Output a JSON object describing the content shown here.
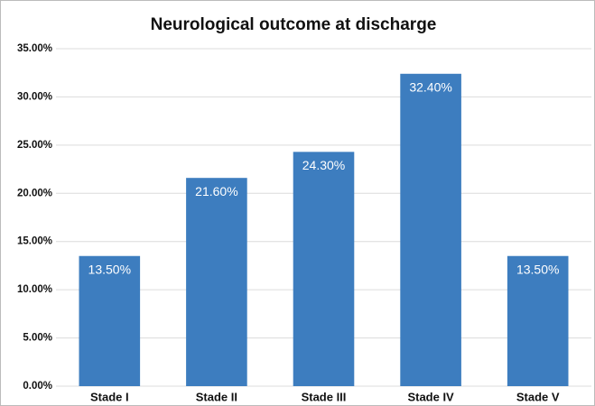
{
  "chart_data": {
    "type": "bar",
    "title": "Neurological outcome at discharge",
    "categories": [
      "Stade I",
      "Stade II",
      "Stade III",
      "Stade IV",
      "Stade V"
    ],
    "values": [
      13.5,
      21.6,
      24.3,
      32.4,
      13.5
    ],
    "value_labels": [
      "13.50%",
      "21.60%",
      "24.30%",
      "32.40%",
      "13.50%"
    ],
    "color": "#3d7dbf",
    "ylim": [
      0,
      35
    ],
    "yticks": [
      {
        "value": 0,
        "label": "0.00%"
      },
      {
        "value": 5,
        "label": "5.00%"
      },
      {
        "value": 10,
        "label": "10.00%"
      },
      {
        "value": 15,
        "label": "15.00%"
      },
      {
        "value": 20,
        "label": "20.00%"
      },
      {
        "value": 25,
        "label": "25.00%"
      },
      {
        "value": 30,
        "label": "30.00%"
      },
      {
        "value": 35,
        "label": "35.00%"
      }
    ],
    "grid": true
  }
}
